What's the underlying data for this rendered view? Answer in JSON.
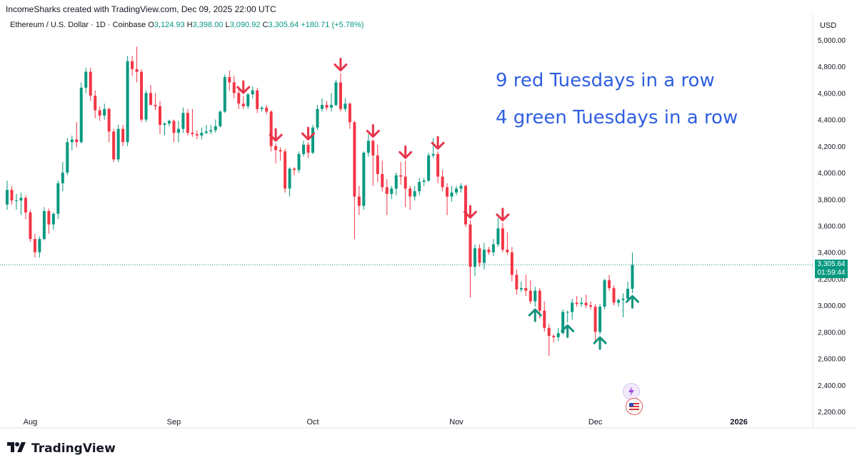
{
  "header": {
    "attribution": "IncomeSharks created with TradingView.com, Dec 09, 2025 22:00 UTC",
    "symbol": "Ethereum / U.S. Dollar · 1D · Coinbase",
    "ohlc": [
      {
        "label": "O",
        "value": "3,124.93"
      },
      {
        "label": "H",
        "value": "3,398.00"
      },
      {
        "label": "L",
        "value": "3,090.92"
      },
      {
        "label": "C",
        "value": "3,305.64"
      }
    ],
    "change": "+180.71 (+5.78%)"
  },
  "price_axis": {
    "currency": "USD",
    "last_price": "3,305.64",
    "countdown": "01:59:44"
  },
  "annotations": {
    "line1": "9 red Tuesdays in a row",
    "line2": "4 green Tuesdays in a row"
  },
  "branding": {
    "name": "TradingView"
  },
  "colors": {
    "up": "#089981",
    "down": "#f23645",
    "annotation_text": "#2f5fe0",
    "arrow_red": "#e8344a",
    "arrow_green": "#12937c"
  },
  "chart_data": {
    "type": "candlestick",
    "symbol": "Ethereum / U.S. Dollar",
    "interval": "1D",
    "ylim": [
      2200,
      5050
    ],
    "y_ticks": [
      2200,
      2400,
      2600,
      2800,
      3000,
      3200,
      3400,
      3600,
      3800,
      4000,
      4200,
      4400,
      4600,
      4800,
      5000
    ],
    "y_tick_labels": [
      "2,200.00",
      "2,400.00",
      "2,600.00",
      "2,800.00",
      "3,000.00",
      "3,200.00",
      "3,400.00",
      "3,600.00",
      "3,800.00",
      "4,000.00",
      "4,200.00",
      "4,400.00",
      "4,600.00",
      "4,800.00",
      "5,000.00"
    ],
    "x_range": [
      "2025-07-27",
      "2026-01-19"
    ],
    "x_ticks": [
      {
        "date": "2025-08-01",
        "label": "Aug"
      },
      {
        "date": "2025-09-01",
        "label": "Sep"
      },
      {
        "date": "2025-10-01",
        "label": "Oct"
      },
      {
        "date": "2025-11-01",
        "label": "Nov"
      },
      {
        "date": "2025-12-01",
        "label": "Dec"
      },
      {
        "date": "2026-01-01",
        "label": "2026"
      }
    ],
    "last_close": 3305.64,
    "candles": [
      {
        "d": "2025-07-27",
        "o": 3760,
        "h": 3940,
        "l": 3720,
        "c": 3870
      },
      {
        "d": "2025-07-28",
        "o": 3870,
        "h": 3900,
        "l": 3760,
        "c": 3790
      },
      {
        "d": "2025-07-29",
        "o": 3790,
        "h": 3840,
        "l": 3720,
        "c": 3790
      },
      {
        "d": "2025-07-30",
        "o": 3790,
        "h": 3850,
        "l": 3680,
        "c": 3810
      },
      {
        "d": "2025-07-31",
        "o": 3810,
        "h": 3830,
        "l": 3650,
        "c": 3700
      },
      {
        "d": "2025-08-01",
        "o": 3700,
        "h": 3720,
        "l": 3480,
        "c": 3500
      },
      {
        "d": "2025-08-02",
        "o": 3500,
        "h": 3540,
        "l": 3360,
        "c": 3400
      },
      {
        "d": "2025-08-03",
        "o": 3400,
        "h": 3520,
        "l": 3360,
        "c": 3500
      },
      {
        "d": "2025-08-04",
        "o": 3500,
        "h": 3740,
        "l": 3490,
        "c": 3710
      },
      {
        "d": "2025-08-05",
        "o": 3710,
        "h": 3730,
        "l": 3540,
        "c": 3610
      },
      {
        "d": "2025-08-06",
        "o": 3610,
        "h": 3700,
        "l": 3570,
        "c": 3690
      },
      {
        "d": "2025-08-07",
        "o": 3690,
        "h": 3940,
        "l": 3650,
        "c": 3920
      },
      {
        "d": "2025-08-08",
        "o": 3920,
        "h": 4080,
        "l": 3860,
        "c": 4000
      },
      {
        "d": "2025-08-09",
        "o": 4000,
        "h": 4260,
        "l": 3980,
        "c": 4230
      },
      {
        "d": "2025-08-10",
        "o": 4230,
        "h": 4280,
        "l": 4170,
        "c": 4250
      },
      {
        "d": "2025-08-11",
        "o": 4250,
        "h": 4380,
        "l": 4190,
        "c": 4230
      },
      {
        "d": "2025-08-12",
        "o": 4230,
        "h": 4680,
        "l": 4220,
        "c": 4640
      },
      {
        "d": "2025-08-13",
        "o": 4640,
        "h": 4790,
        "l": 4600,
        "c": 4760
      },
      {
        "d": "2025-08-14",
        "o": 4760,
        "h": 4790,
        "l": 4540,
        "c": 4580
      },
      {
        "d": "2025-08-15",
        "o": 4580,
        "h": 4620,
        "l": 4410,
        "c": 4470
      },
      {
        "d": "2025-08-16",
        "o": 4470,
        "h": 4500,
        "l": 4390,
        "c": 4430
      },
      {
        "d": "2025-08-17",
        "o": 4430,
        "h": 4520,
        "l": 4400,
        "c": 4480
      },
      {
        "d": "2025-08-18",
        "o": 4480,
        "h": 4490,
        "l": 4230,
        "c": 4310
      },
      {
        "d": "2025-08-19",
        "o": 4310,
        "h": 4330,
        "l": 4080,
        "c": 4100
      },
      {
        "d": "2025-08-20",
        "o": 4100,
        "h": 4360,
        "l": 4080,
        "c": 4330
      },
      {
        "d": "2025-08-21",
        "o": 4330,
        "h": 4360,
        "l": 4200,
        "c": 4230
      },
      {
        "d": "2025-08-22",
        "o": 4230,
        "h": 4880,
        "l": 4200,
        "c": 4840
      },
      {
        "d": "2025-08-23",
        "o": 4840,
        "h": 4880,
        "l": 4730,
        "c": 4780
      },
      {
        "d": "2025-08-24",
        "o": 4780,
        "h": 4950,
        "l": 4680,
        "c": 4760
      },
      {
        "d": "2025-08-25",
        "o": 4760,
        "h": 4780,
        "l": 4380,
        "c": 4400
      },
      {
        "d": "2025-08-26",
        "o": 4400,
        "h": 4620,
        "l": 4380,
        "c": 4600
      },
      {
        "d": "2025-08-27",
        "o": 4600,
        "h": 4660,
        "l": 4510,
        "c": 4510
      },
      {
        "d": "2025-08-28",
        "o": 4510,
        "h": 4600,
        "l": 4470,
        "c": 4500
      },
      {
        "d": "2025-08-29",
        "o": 4500,
        "h": 4540,
        "l": 4290,
        "c": 4360
      },
      {
        "d": "2025-08-30",
        "o": 4360,
        "h": 4380,
        "l": 4280,
        "c": 4370
      },
      {
        "d": "2025-08-31",
        "o": 4370,
        "h": 4400,
        "l": 4350,
        "c": 4390
      },
      {
        "d": "2025-09-01",
        "o": 4390,
        "h": 4400,
        "l": 4230,
        "c": 4300
      },
      {
        "d": "2025-09-02",
        "o": 4300,
        "h": 4390,
        "l": 4230,
        "c": 4330
      },
      {
        "d": "2025-09-03",
        "o": 4330,
        "h": 4490,
        "l": 4300,
        "c": 4450
      },
      {
        "d": "2025-09-04",
        "o": 4450,
        "h": 4480,
        "l": 4280,
        "c": 4300
      },
      {
        "d": "2025-09-05",
        "o": 4300,
        "h": 4480,
        "l": 4270,
        "c": 4290
      },
      {
        "d": "2025-09-06",
        "o": 4290,
        "h": 4320,
        "l": 4250,
        "c": 4280
      },
      {
        "d": "2025-09-07",
        "o": 4280,
        "h": 4340,
        "l": 4250,
        "c": 4300
      },
      {
        "d": "2025-09-08",
        "o": 4300,
        "h": 4360,
        "l": 4290,
        "c": 4310
      },
      {
        "d": "2025-09-09",
        "o": 4310,
        "h": 4360,
        "l": 4290,
        "c": 4320
      },
      {
        "d": "2025-09-10",
        "o": 4320,
        "h": 4400,
        "l": 4300,
        "c": 4350
      },
      {
        "d": "2025-09-11",
        "o": 4350,
        "h": 4470,
        "l": 4340,
        "c": 4460
      },
      {
        "d": "2025-09-12",
        "o": 4460,
        "h": 4740,
        "l": 4450,
        "c": 4720
      },
      {
        "d": "2025-09-13",
        "o": 4720,
        "h": 4770,
        "l": 4620,
        "c": 4680
      },
      {
        "d": "2025-09-14",
        "o": 4680,
        "h": 4730,
        "l": 4560,
        "c": 4600
      },
      {
        "d": "2025-09-15",
        "o": 4600,
        "h": 4650,
        "l": 4480,
        "c": 4520
      },
      {
        "d": "2025-09-16",
        "o": 4520,
        "h": 4580,
        "l": 4480,
        "c": 4500
      },
      {
        "d": "2025-09-17",
        "o": 4500,
        "h": 4600,
        "l": 4480,
        "c": 4590
      },
      {
        "d": "2025-09-18",
        "o": 4590,
        "h": 4650,
        "l": 4560,
        "c": 4620
      },
      {
        "d": "2025-09-19",
        "o": 4620,
        "h": 4640,
        "l": 4450,
        "c": 4480
      },
      {
        "d": "2025-09-20",
        "o": 4480,
        "h": 4500,
        "l": 4460,
        "c": 4490
      },
      {
        "d": "2025-09-21",
        "o": 4490,
        "h": 4510,
        "l": 4440,
        "c": 4460
      },
      {
        "d": "2025-09-22",
        "o": 4460,
        "h": 4470,
        "l": 4160,
        "c": 4200
      },
      {
        "d": "2025-09-23",
        "o": 4200,
        "h": 4220,
        "l": 4070,
        "c": 4170
      },
      {
        "d": "2025-09-24",
        "o": 4170,
        "h": 4190,
        "l": 4090,
        "c": 4160
      },
      {
        "d": "2025-09-25",
        "o": 4160,
        "h": 4180,
        "l": 3850,
        "c": 3880
      },
      {
        "d": "2025-09-26",
        "o": 3880,
        "h": 4040,
        "l": 3820,
        "c": 4030
      },
      {
        "d": "2025-09-27",
        "o": 4030,
        "h": 4040,
        "l": 3980,
        "c": 4020
      },
      {
        "d": "2025-09-28",
        "o": 4020,
        "h": 4160,
        "l": 4000,
        "c": 4140
      },
      {
        "d": "2025-09-29",
        "o": 4140,
        "h": 4240,
        "l": 4120,
        "c": 4210
      },
      {
        "d": "2025-09-30",
        "o": 4210,
        "h": 4230,
        "l": 4110,
        "c": 4150
      },
      {
        "d": "2025-10-01",
        "o": 4150,
        "h": 4360,
        "l": 4140,
        "c": 4340
      },
      {
        "d": "2025-10-02",
        "o": 4340,
        "h": 4510,
        "l": 4320,
        "c": 4480
      },
      {
        "d": "2025-10-03",
        "o": 4480,
        "h": 4560,
        "l": 4460,
        "c": 4510
      },
      {
        "d": "2025-10-04",
        "o": 4510,
        "h": 4540,
        "l": 4470,
        "c": 4490
      },
      {
        "d": "2025-10-05",
        "o": 4490,
        "h": 4600,
        "l": 4460,
        "c": 4510
      },
      {
        "d": "2025-10-06",
        "o": 4510,
        "h": 4700,
        "l": 4500,
        "c": 4680
      },
      {
        "d": "2025-10-07",
        "o": 4680,
        "h": 4750,
        "l": 4460,
        "c": 4480
      },
      {
        "d": "2025-10-08",
        "o": 4480,
        "h": 4560,
        "l": 4460,
        "c": 4520
      },
      {
        "d": "2025-10-09",
        "o": 4520,
        "h": 4530,
        "l": 4330,
        "c": 4380
      },
      {
        "d": "2025-10-10",
        "o": 4380,
        "h": 4390,
        "l": 3500,
        "c": 3820
      },
      {
        "d": "2025-10-11",
        "o": 3820,
        "h": 3900,
        "l": 3680,
        "c": 3750
      },
      {
        "d": "2025-10-12",
        "o": 3750,
        "h": 4160,
        "l": 3720,
        "c": 4150
      },
      {
        "d": "2025-10-13",
        "o": 4150,
        "h": 4290,
        "l": 4120,
        "c": 4240
      },
      {
        "d": "2025-10-14",
        "o": 4240,
        "h": 4250,
        "l": 3900,
        "c": 4130
      },
      {
        "d": "2025-10-15",
        "o": 4130,
        "h": 4210,
        "l": 3930,
        "c": 3990
      },
      {
        "d": "2025-10-16",
        "o": 3990,
        "h": 4090,
        "l": 3860,
        "c": 3890
      },
      {
        "d": "2025-10-17",
        "o": 3890,
        "h": 3950,
        "l": 3680,
        "c": 3840
      },
      {
        "d": "2025-10-18",
        "o": 3840,
        "h": 3900,
        "l": 3800,
        "c": 3880
      },
      {
        "d": "2025-10-19",
        "o": 3880,
        "h": 4000,
        "l": 3830,
        "c": 3980
      },
      {
        "d": "2025-10-20",
        "o": 3980,
        "h": 4080,
        "l": 3910,
        "c": 3970
      },
      {
        "d": "2025-10-21",
        "o": 3970,
        "h": 4090,
        "l": 3740,
        "c": 3880
      },
      {
        "d": "2025-10-22",
        "o": 3880,
        "h": 3900,
        "l": 3720,
        "c": 3820
      },
      {
        "d": "2025-10-23",
        "o": 3820,
        "h": 3900,
        "l": 3790,
        "c": 3860
      },
      {
        "d": "2025-10-24",
        "o": 3860,
        "h": 3960,
        "l": 3830,
        "c": 3930
      },
      {
        "d": "2025-10-25",
        "o": 3930,
        "h": 3960,
        "l": 3900,
        "c": 3940
      },
      {
        "d": "2025-10-26",
        "o": 3940,
        "h": 4150,
        "l": 3930,
        "c": 4130
      },
      {
        "d": "2025-10-27",
        "o": 4130,
        "h": 4260,
        "l": 4110,
        "c": 4140
      },
      {
        "d": "2025-10-28",
        "o": 4140,
        "h": 4160,
        "l": 3920,
        "c": 3970
      },
      {
        "d": "2025-10-29",
        "o": 3970,
        "h": 4020,
        "l": 3860,
        "c": 3890
      },
      {
        "d": "2025-10-30",
        "o": 3890,
        "h": 3920,
        "l": 3680,
        "c": 3820
      },
      {
        "d": "2025-10-31",
        "o": 3820,
        "h": 3900,
        "l": 3780,
        "c": 3850
      },
      {
        "d": "2025-11-01",
        "o": 3850,
        "h": 3900,
        "l": 3830,
        "c": 3880
      },
      {
        "d": "2025-11-02",
        "o": 3880,
        "h": 3920,
        "l": 3850,
        "c": 3900
      },
      {
        "d": "2025-11-03",
        "o": 3900,
        "h": 3910,
        "l": 3590,
        "c": 3610
      },
      {
        "d": "2025-11-04",
        "o": 3610,
        "h": 3640,
        "l": 3060,
        "c": 3290
      },
      {
        "d": "2025-11-05",
        "o": 3290,
        "h": 3460,
        "l": 3220,
        "c": 3430
      },
      {
        "d": "2025-11-06",
        "o": 3430,
        "h": 3460,
        "l": 3290,
        "c": 3320
      },
      {
        "d": "2025-11-07",
        "o": 3320,
        "h": 3470,
        "l": 3270,
        "c": 3420
      },
      {
        "d": "2025-11-08",
        "o": 3420,
        "h": 3440,
        "l": 3380,
        "c": 3400
      },
      {
        "d": "2025-11-09",
        "o": 3400,
        "h": 3500,
        "l": 3370,
        "c": 3460
      },
      {
        "d": "2025-11-10",
        "o": 3460,
        "h": 3660,
        "l": 3440,
        "c": 3580
      },
      {
        "d": "2025-11-11",
        "o": 3580,
        "h": 3620,
        "l": 3400,
        "c": 3420
      },
      {
        "d": "2025-11-12",
        "o": 3420,
        "h": 3550,
        "l": 3380,
        "c": 3400
      },
      {
        "d": "2025-11-13",
        "o": 3400,
        "h": 3440,
        "l": 3180,
        "c": 3230
      },
      {
        "d": "2025-11-14",
        "o": 3230,
        "h": 3270,
        "l": 3080,
        "c": 3120
      },
      {
        "d": "2025-11-15",
        "o": 3120,
        "h": 3180,
        "l": 3100,
        "c": 3130
      },
      {
        "d": "2025-11-16",
        "o": 3130,
        "h": 3230,
        "l": 3070,
        "c": 3110
      },
      {
        "d": "2025-11-17",
        "o": 3110,
        "h": 3190,
        "l": 3010,
        "c": 3030
      },
      {
        "d": "2025-11-18",
        "o": 3030,
        "h": 3140,
        "l": 2990,
        "c": 3110
      },
      {
        "d": "2025-11-19",
        "o": 3110,
        "h": 3130,
        "l": 2900,
        "c": 2960
      },
      {
        "d": "2025-11-20",
        "o": 2960,
        "h": 3030,
        "l": 2800,
        "c": 2830
      },
      {
        "d": "2025-11-21",
        "o": 2830,
        "h": 2860,
        "l": 2620,
        "c": 2770
      },
      {
        "d": "2025-11-22",
        "o": 2770,
        "h": 2780,
        "l": 2720,
        "c": 2760
      },
      {
        "d": "2025-11-23",
        "o": 2760,
        "h": 2830,
        "l": 2730,
        "c": 2790
      },
      {
        "d": "2025-11-24",
        "o": 2790,
        "h": 2970,
        "l": 2780,
        "c": 2950
      },
      {
        "d": "2025-11-25",
        "o": 2950,
        "h": 2960,
        "l": 2870,
        "c": 2950
      },
      {
        "d": "2025-11-26",
        "o": 2950,
        "h": 3050,
        "l": 2890,
        "c": 3020
      },
      {
        "d": "2025-11-27",
        "o": 3020,
        "h": 3070,
        "l": 2990,
        "c": 3010
      },
      {
        "d": "2025-11-28",
        "o": 3010,
        "h": 3060,
        "l": 2990,
        "c": 3020
      },
      {
        "d": "2025-11-29",
        "o": 3020,
        "h": 3080,
        "l": 2980,
        "c": 3000
      },
      {
        "d": "2025-11-30",
        "o": 3000,
        "h": 3030,
        "l": 2970,
        "c": 2990
      },
      {
        "d": "2025-12-01",
        "o": 2990,
        "h": 3010,
        "l": 2720,
        "c": 2800
      },
      {
        "d": "2025-12-02",
        "o": 2800,
        "h": 3010,
        "l": 2780,
        "c": 2990
      },
      {
        "d": "2025-12-03",
        "o": 2990,
        "h": 3200,
        "l": 2970,
        "c": 3190
      },
      {
        "d": "2025-12-04",
        "o": 3190,
        "h": 3230,
        "l": 3110,
        "c": 3130
      },
      {
        "d": "2025-12-05",
        "o": 3130,
        "h": 3150,
        "l": 3000,
        "c": 3020
      },
      {
        "d": "2025-12-06",
        "o": 3020,
        "h": 3050,
        "l": 2990,
        "c": 3040
      },
      {
        "d": "2025-12-07",
        "o": 3040,
        "h": 3090,
        "l": 2910,
        "c": 3050
      },
      {
        "d": "2025-12-08",
        "o": 3050,
        "h": 3180,
        "l": 3030,
        "c": 3125
      },
      {
        "d": "2025-12-09",
        "o": 3125,
        "h": 3398,
        "l": 3091,
        "c": 3306
      }
    ],
    "markers": [
      {
        "d": "2025-09-16",
        "kind": "down"
      },
      {
        "d": "2025-09-23",
        "kind": "down"
      },
      {
        "d": "2025-09-30",
        "kind": "down"
      },
      {
        "d": "2025-10-07",
        "kind": "down"
      },
      {
        "d": "2025-10-14",
        "kind": "down"
      },
      {
        "d": "2025-10-21",
        "kind": "down"
      },
      {
        "d": "2025-10-28",
        "kind": "down"
      },
      {
        "d": "2025-11-04",
        "kind": "down"
      },
      {
        "d": "2025-11-11",
        "kind": "down"
      },
      {
        "d": "2025-11-18",
        "kind": "up"
      },
      {
        "d": "2025-11-25",
        "kind": "up"
      },
      {
        "d": "2025-12-02",
        "kind": "up"
      },
      {
        "d": "2025-12-09",
        "kind": "up"
      }
    ]
  }
}
